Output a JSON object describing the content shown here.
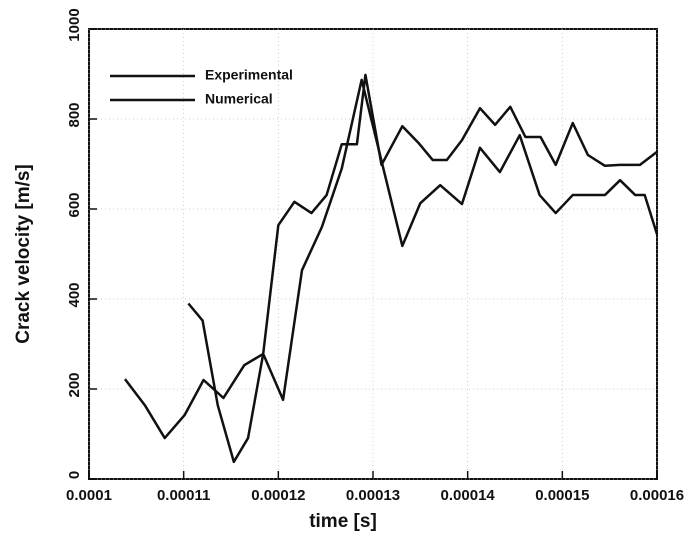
{
  "chart_data": {
    "type": "line",
    "xlabel": "time [s]",
    "ylabel": "Crack velocity [m/s]",
    "xlim": [
      0.0001,
      0.00016
    ],
    "xticks": [
      0.0001,
      0.00011,
      0.00012,
      0.00013,
      0.00014,
      0.00015,
      0.00016
    ],
    "ylim": [
      0,
      1000
    ],
    "yticks": [
      0,
      200,
      400,
      600,
      800,
      1000
    ],
    "grid": true,
    "legend": "upper left",
    "series": [
      {
        "name": "Experimental",
        "color": "#111111",
        "x": [
          0.0001105,
          0.000112,
          0.0001136,
          0.0001153,
          0.0001168,
          0.0001184,
          0.00012,
          0.0001217,
          0.0001235,
          0.0001251,
          0.0001267,
          0.0001283,
          0.0001292,
          0.0001309,
          0.0001331,
          0.0001348,
          0.0001363,
          0.0001378,
          0.0001394,
          0.0001413,
          0.0001429,
          0.0001445,
          0.0001461,
          0.0001477,
          0.0001493,
          0.0001511,
          0.0001527,
          0.0001545,
          0.0001561,
          0.0001582,
          0.00016
        ],
        "values": [
          390,
          352,
          164,
          38,
          91,
          278,
          564,
          616,
          591,
          631,
          744,
          744,
          898,
          698,
          784,
          747,
          709,
          709,
          753,
          824,
          787,
          827,
          760,
          760,
          698,
          791,
          720,
          696,
          698,
          698,
          727
        ]
      },
      {
        "name": "Numerical",
        "color": "#111111",
        "x": [
          0.0001038,
          0.0001059,
          0.000108,
          0.0001101,
          0.0001121,
          0.0001142,
          0.0001164,
          0.0001184,
          0.0001205,
          0.0001225,
          0.0001246,
          0.0001267,
          0.0001288,
          0.0001331,
          0.000135,
          0.0001371,
          0.0001394,
          0.0001413,
          0.0001434,
          0.0001455,
          0.0001476,
          0.0001493,
          0.0001511,
          0.0001545,
          0.0001561,
          0.0001577,
          0.0001587,
          0.00016
        ],
        "values": [
          222,
          164,
          91,
          142,
          220,
          180,
          253,
          278,
          176,
          464,
          560,
          690,
          887,
          518,
          613,
          653,
          611,
          736,
          682,
          764,
          631,
          591,
          631,
          631,
          664,
          631,
          631,
          544
        ]
      }
    ]
  }
}
